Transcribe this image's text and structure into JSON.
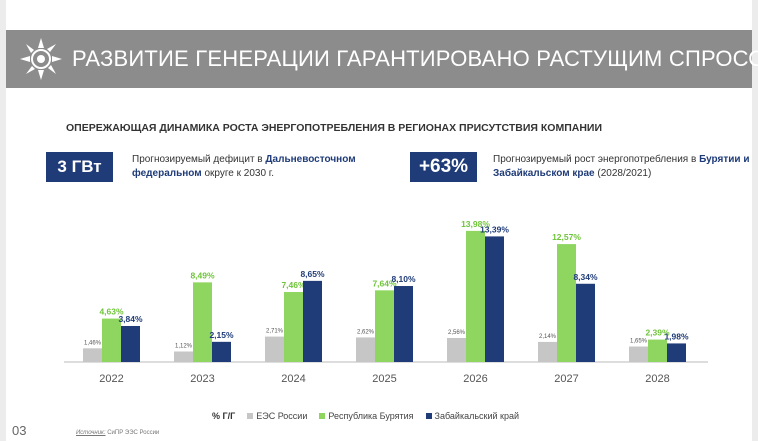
{
  "header": {
    "title": "РАЗВИТИЕ ГЕНЕРАЦИИ ГАРАНТИРОВАНО РАСТУЩИМ СПРОСОМ"
  },
  "subtitle": "ОПЕРЕЖАЮЩАЯ ДИНАМИКА РОСТА ЭНЕРГОПОТРЕБЛЕНИЯ В РЕГИОНАХ ПРИСУТСТВИЯ КОМПАНИИ",
  "badge1": {
    "value": "3 ГВт",
    "text_pre": "Прогнозируемый дефицит в ",
    "text_bold": "Дальневосточном федеральном",
    "text_post": " округе к 2030 г."
  },
  "badge2": {
    "value": "+63%",
    "text_pre": "Прогнозируемый рост энергопотребления в ",
    "text_bold": "Бурятии и Забайкальском крае",
    "text_post": " (2028/2021)"
  },
  "colors": {
    "header_bg": "#8c8c8c",
    "navy": "#1f3b78",
    "green": "#8ed65f",
    "grey": "#c6c6c6",
    "label_green": "#6fc43a"
  },
  "chart_data": {
    "type": "bar",
    "categories": [
      "2022",
      "2023",
      "2024",
      "2025",
      "2026",
      "2027",
      "2028"
    ],
    "series": [
      {
        "name": "ЕЭС России",
        "values": [
          1.46,
          1.12,
          2.71,
          2.62,
          2.56,
          2.14,
          1.65
        ],
        "labels": [
          "1,46%",
          "1,12%",
          "2,71%",
          "2,62%",
          "2,56%",
          "2,14%",
          "1,65%"
        ]
      },
      {
        "name": "Республика Бурятия",
        "values": [
          4.63,
          8.49,
          7.46,
          7.64,
          13.98,
          12.57,
          2.39
        ],
        "labels": [
          "4,63%",
          "8,49%",
          "7,46%",
          "7,64%",
          "13,98%",
          "12,57%",
          "2,39%"
        ]
      },
      {
        "name": "Забайкальский край",
        "values": [
          3.84,
          2.15,
          8.65,
          8.1,
          13.39,
          8.34,
          1.98
        ],
        "labels": [
          "3,84%",
          "2,15%",
          "8,65%",
          "8,10%",
          "13,39%",
          "8,34%",
          "1,98%"
        ]
      }
    ],
    "unit_label": "% Г/Г",
    "ylim": [
      0,
      14.5
    ]
  },
  "footer": {
    "page_number": "03",
    "source_label": "Источник:",
    "source_text": " СиПР ЭЭС России"
  }
}
